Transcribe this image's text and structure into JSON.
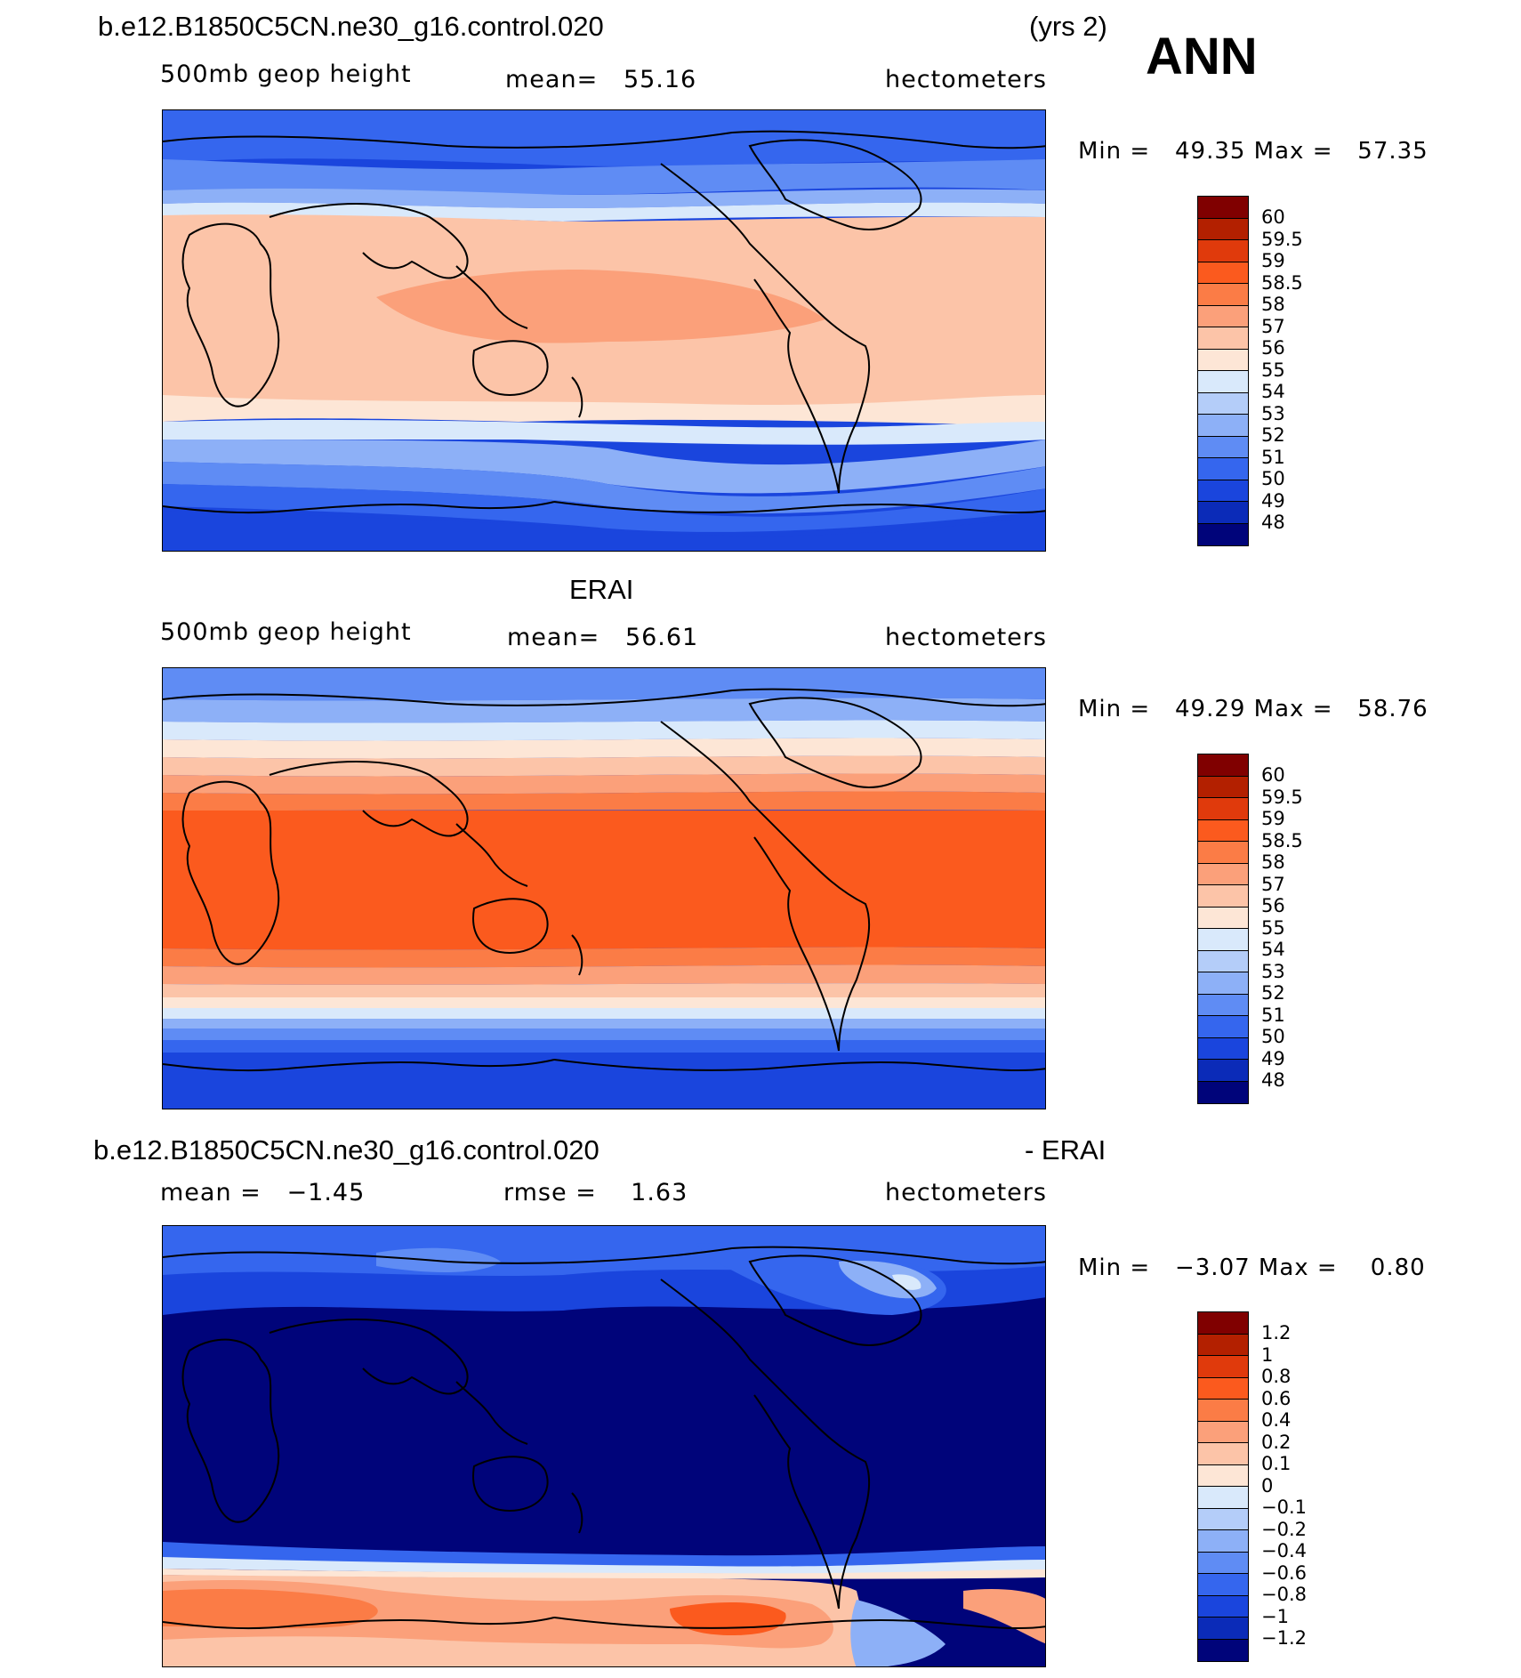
{
  "header": {
    "case_name": "b.e12.B1850C5CN.ne30_g16.control.020",
    "years": "(yrs 2)",
    "season": "ANN"
  },
  "panels": [
    {
      "title_left": "",
      "subtitle_left": "500mb geop height",
      "subtitle_center": "mean=   55.16",
      "units": "hectometers",
      "min_max": "Min =   49.35 Max =   57.35",
      "colorbar_labels": [
        "60",
        "59.5",
        "59",
        "58.5",
        "58",
        "57",
        "56",
        "55",
        "54",
        "53",
        "52",
        "51",
        "50",
        "49",
        "48"
      ]
    },
    {
      "title_center": "ERAI",
      "subtitle_left": "500mb geop height",
      "subtitle_center": "mean=   56.61",
      "units": "hectometers",
      "min_max": "Min =   49.29 Max =   58.76",
      "colorbar_labels": [
        "60",
        "59.5",
        "59",
        "58.5",
        "58",
        "57",
        "56",
        "55",
        "54",
        "53",
        "52",
        "51",
        "50",
        "49",
        "48"
      ]
    },
    {
      "title_left": "b.e12.B1850C5CN.ne30_g16.control.020",
      "title_right": "- ERAI",
      "subtitle_left": "mean =   −1.45",
      "subtitle_center": "rmse =    1.63",
      "units": "hectometers",
      "min_max": "Min =   −3.07 Max =    0.80",
      "colorbar_labels": [
        "1.2",
        "1",
        "0.8",
        "0.6",
        "0.4",
        "0.2",
        "0.1",
        "0",
        "−0.1",
        "−0.2",
        "−0.4",
        "−0.6",
        "−0.8",
        "−1",
        "−1.2"
      ]
    }
  ],
  "colorbar_colors": [
    "#800000",
    "#b32000",
    "#e03a0c",
    "#fb5a1e",
    "#fb7c46",
    "#fba07a",
    "#fcc4a8",
    "#fde6d6",
    "#d9e9fb",
    "#b4cdf9",
    "#8db0f7",
    "#5f8cf4",
    "#3566ee",
    "#1a45dd",
    "#0b2bb8",
    "#00047a"
  ]
}
